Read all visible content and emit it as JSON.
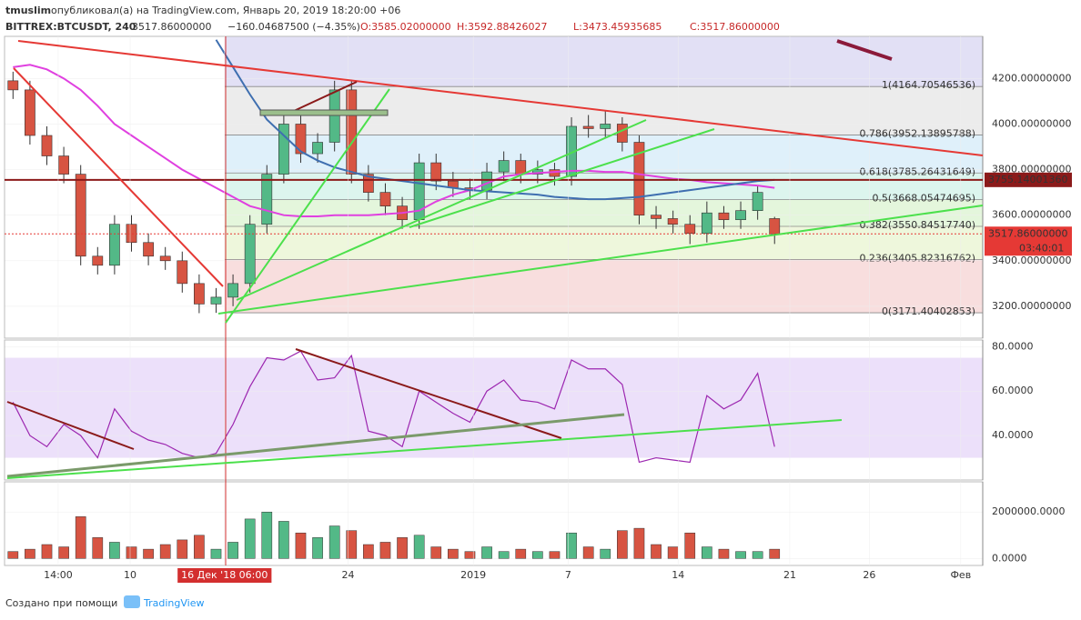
{
  "header": {
    "user": "tmuslim",
    "published": "опубликовал(а) на TradingView.com, Январь 20, 2019 18:20:00 +06",
    "symbol": "BITTREX:BTCUSDT, 240",
    "last": "3517.86000000",
    "change": "−160.04687500 (−4.35%)",
    "open": "O:3585.02000000",
    "high": "H:3592.88426027",
    "low": "L:3473.45935685",
    "close": "C:3517.86000000"
  },
  "footer": {
    "made_with": "Создано при помощи",
    "brand": "TradingView"
  },
  "chart_data": [
    {
      "type": "candlestick",
      "xlim": [
        -0.5,
        57.3
      ],
      "ylim": [
        3060,
        4385
      ],
      "yticks": [
        {
          "value": 3200,
          "label": "3200.00000000"
        },
        {
          "value": 3400,
          "label": "3400.00000000"
        },
        {
          "value": 3600,
          "label": "3600.00000000"
        },
        {
          "value": 3800,
          "label": "3800.00000000"
        },
        {
          "value": 4000,
          "label": "4000.00000000"
        },
        {
          "value": 4200,
          "label": "4200.00000000"
        }
      ],
      "up_color": "#53b987",
      "down_color": "#d75442",
      "open": [
        4190,
        4150,
        3950,
        3860,
        3780,
        3420,
        3380,
        3560,
        3480,
        3420,
        3400,
        3300,
        3210,
        3240,
        3300,
        3560,
        3780,
        4000,
        3870,
        3920,
        4150,
        3780,
        3700,
        3640,
        3580,
        3830,
        3750,
        3720,
        3710,
        3790,
        3840,
        3780,
        3800,
        3770,
        3990,
        3980,
        4000,
        3920,
        3600,
        3585,
        3560,
        3520,
        3610,
        3580,
        3620,
        3585.02
      ],
      "high": [
        4230,
        4190,
        3990,
        3900,
        3820,
        3460,
        3600,
        3600,
        3520,
        3460,
        3440,
        3340,
        3280,
        3340,
        3600,
        3820,
        4040,
        4060,
        3960,
        4190,
        4195,
        3820,
        3740,
        3680,
        3870,
        3870,
        3790,
        3760,
        3830,
        3880,
        3870,
        3840,
        3830,
        4030,
        4040,
        4060,
        4030,
        3950,
        3640,
        3620,
        3600,
        3660,
        3640,
        3660,
        3730,
        3592.88426027
      ],
      "low": [
        4110,
        3910,
        3820,
        3740,
        3380,
        3340,
        3340,
        3440,
        3380,
        3360,
        3260,
        3170,
        3171.40402853,
        3200,
        3260,
        3520,
        3740,
        3830,
        3830,
        3880,
        3740,
        3660,
        3600,
        3540,
        3540,
        3710,
        3680,
        3670,
        3670,
        3750,
        3740,
        3740,
        3730,
        3730,
        3940,
        3940,
        3880,
        3560,
        3540,
        3520,
        3473,
        3480,
        3540,
        3540,
        3580,
        3473.45935685
      ],
      "close": [
        4150,
        3950,
        3860,
        3780,
        3420,
        3380,
        3560,
        3480,
        3420,
        3400,
        3300,
        3210,
        3240,
        3300,
        3560,
        3780,
        4000,
        3870,
        3920,
        4150,
        3780,
        3700,
        3640,
        3580,
        3830,
        3750,
        3720,
        3710,
        3790,
        3840,
        3780,
        3800,
        3770,
        3990,
        3980,
        4000,
        3920,
        3600,
        3585,
        3560,
        3520,
        3610,
        3580,
        3620,
        3700,
        3517.86
      ],
      "series": [
        {
          "name": "MA long",
          "color": "#e040e0",
          "values": [
            4250,
            4260,
            4240,
            4200,
            4150,
            4080,
            4000,
            3950,
            3900,
            3850,
            3800,
            3760,
            3720,
            3680,
            3640,
            3620,
            3600,
            3595,
            3595,
            3600,
            3600,
            3600,
            3605,
            3610,
            3620,
            3660,
            3690,
            3710,
            3740,
            3770,
            3780,
            3785,
            3790,
            3795,
            3795,
            3790,
            3790,
            3780,
            3770,
            3760,
            3755,
            3745,
            3740,
            3735,
            3730,
            3720
          ]
        },
        {
          "name": "MA mid",
          "color": "#3f6fb0",
          "values": [
            null,
            null,
            null,
            null,
            null,
            null,
            null,
            null,
            null,
            null,
            null,
            null,
            4370,
            4250,
            4130,
            4020,
            3950,
            3880,
            3840,
            3810,
            3790,
            3770,
            3760,
            3750,
            3740,
            3730,
            3720,
            3710,
            3705,
            3700,
            3695,
            3690,
            3680,
            3675,
            3670,
            3670,
            3675,
            3680,
            3690,
            3700,
            3710,
            3720,
            3730,
            3740,
            3750,
            3755
          ]
        }
      ],
      "fib": [
        {
          "label": "1(4164.70546536)",
          "value": 4164.70546536,
          "color": "#ececec"
        },
        {
          "label": "0.786(3952.13895788)",
          "value": 3952.13895788,
          "color": "#dff0fa"
        },
        {
          "label": "0.618(3785.26431649)",
          "value": 3785.26431649,
          "color": "#dcf5ee"
        },
        {
          "label": "0.5(3668.05474695)",
          "value": 3668.05474695,
          "color": "#e4f6dc"
        },
        {
          "label": "0.382(3550.84517740)",
          "value": 3550.8451774,
          "color": "#eef7dc"
        },
        {
          "label": "0.236(3405.82316762)",
          "value": 3405.82316762,
          "color": "#f8dede"
        },
        {
          "label": "0(3171.40402853)",
          "value": 3171.40402853,
          "color": "#f8dede"
        }
      ],
      "hline": {
        "value": 3755.1400136,
        "label": "3755.14001360",
        "color": "#8b1a1a"
      },
      "last": {
        "value": 3517.86,
        "label": "3517.86000000",
        "countdown": "03:40:01",
        "color": "#e53935"
      }
    },
    {
      "type": "line",
      "xlim": [
        -0.5,
        57.3
      ],
      "ylim": [
        20,
        83
      ],
      "color": "#9c27b0",
      "band": [
        30,
        75
      ],
      "yticks": [
        {
          "value": 40,
          "label": "40.0000"
        },
        {
          "value": 60,
          "label": "60.0000"
        },
        {
          "value": 80,
          "label": "80.0000"
        }
      ],
      "values": [
        55,
        40,
        35,
        45,
        40,
        30,
        52,
        42,
        38,
        36,
        32,
        30,
        32,
        45,
        62,
        75,
        74,
        78,
        65,
        66,
        76,
        42,
        40,
        35,
        60,
        55,
        50,
        46,
        60,
        65,
        56,
        55,
        52,
        74,
        70,
        70,
        63,
        28,
        30,
        29,
        28,
        58,
        52,
        56,
        68,
        35
      ]
    },
    {
      "type": "bar",
      "xlim": [
        -0.5,
        57.3
      ],
      "ylim": [
        -300000,
        3300000
      ],
      "yticks": [
        {
          "value": 0,
          "label": "0.0000"
        },
        {
          "value": 2000000,
          "label": "2000000.0000"
        }
      ],
      "values": [
        300000,
        400000,
        600000,
        500000,
        1800000,
        900000,
        700000,
        500000,
        400000,
        600000,
        800000,
        1000000,
        400000,
        700000,
        1700000,
        2000000,
        1600000,
        1100000,
        900000,
        1400000,
        1200000,
        600000,
        700000,
        900000,
        1000000,
        500000,
        400000,
        300000,
        500000,
        300000,
        400000,
        300000,
        300000,
        1100000,
        500000,
        400000,
        1200000,
        1300000,
        600000,
        500000,
        1100000,
        500000,
        400000,
        300000,
        300000,
        400000
      ],
      "xticks": [
        {
          "value": 2.67,
          "label": "14:00"
        },
        {
          "value": 6.92,
          "label": "10"
        },
        {
          "value": 12.5,
          "label": "16 Дек '18  06:00"
        },
        {
          "value": 19.8,
          "label": "24"
        },
        {
          "value": 27.2,
          "label": "2019"
        },
        {
          "value": 32.8,
          "label": "7"
        },
        {
          "value": 39.3,
          "label": "14"
        },
        {
          "value": 45.9,
          "label": "21"
        },
        {
          "value": 50.6,
          "label": "26"
        },
        {
          "value": 56,
          "label": "Фев"
        }
      ]
    }
  ]
}
